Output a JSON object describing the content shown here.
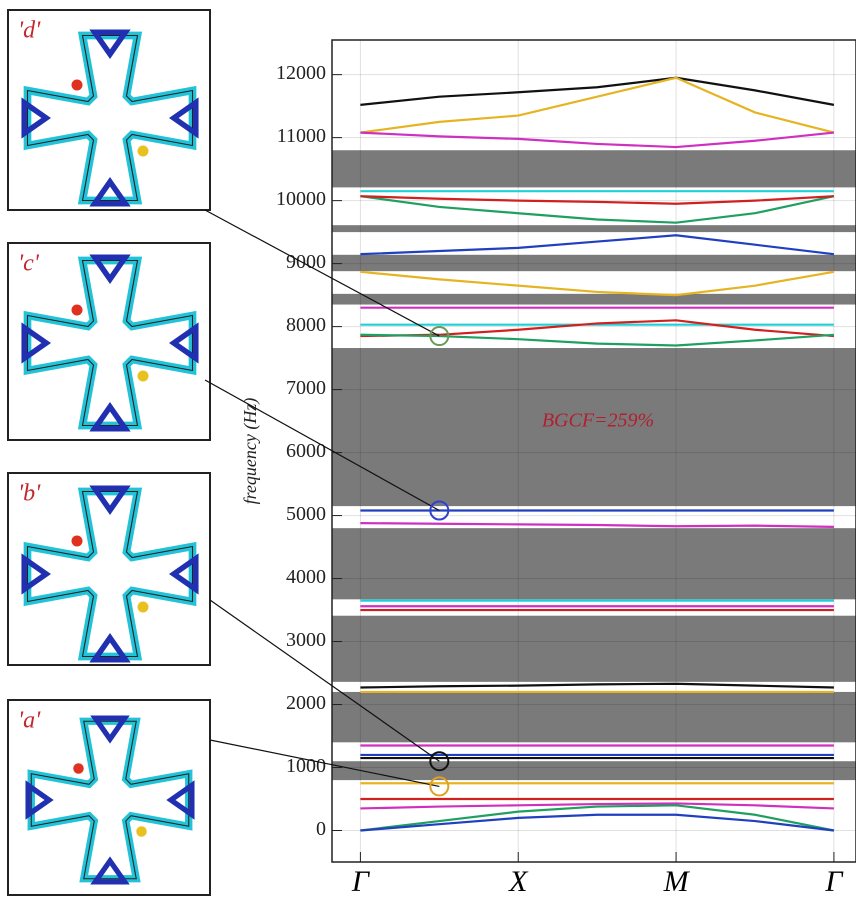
{
  "chart_data": {
    "type": "line",
    "y_label": "frequency (Hz)",
    "annotation": "BGCF=259%",
    "xlim": [
      -0.18,
      3.14
    ],
    "ylim": [
      -500,
      12550
    ],
    "xticks": [
      {
        "value": 0,
        "label": "Γ"
      },
      {
        "value": 1,
        "label": "X"
      },
      {
        "value": 2,
        "label": "M"
      },
      {
        "value": 3,
        "label": "Γ"
      }
    ],
    "yticks": [
      0,
      1000,
      2000,
      3000,
      4000,
      5000,
      6000,
      7000,
      8000,
      9000,
      10000,
      11000,
      12000
    ],
    "grid": true,
    "bandgap_color": "#7a7a7a",
    "bandgaps": [
      [
        800,
        1100
      ],
      [
        1400,
        2200
      ],
      [
        2360,
        3410
      ],
      [
        3670,
        4800
      ],
      [
        5150,
        7660
      ],
      [
        8350,
        8520
      ],
      [
        8880,
        9140
      ],
      [
        9500,
        9610
      ],
      [
        10210,
        10800
      ]
    ],
    "x": [
      0,
      0.5,
      1,
      1.5,
      2,
      2.5,
      3
    ],
    "series": [
      {
        "color": "#111111",
        "values": [
          11520,
          11650,
          11720,
          11800,
          11950,
          11750,
          11520
        ]
      },
      {
        "color": "#e6b422",
        "values": [
          11080,
          11250,
          11350,
          11650,
          11950,
          11400,
          11080
        ]
      },
      {
        "color": "#d030c0",
        "values": [
          11080,
          11020,
          10980,
          10900,
          10850,
          10950,
          11080
        ]
      },
      {
        "color": "#20d0d8",
        "values": [
          10150,
          10150,
          10150,
          10150,
          10150,
          10150,
          10150
        ]
      },
      {
        "color": "#20a060",
        "values": [
          10070,
          9900,
          9800,
          9700,
          9650,
          9800,
          10070
        ]
      },
      {
        "color": "#d02020",
        "values": [
          10070,
          10030,
          10000,
          9980,
          9950,
          10000,
          10070
        ]
      },
      {
        "color": "#2040c0",
        "values": [
          9150,
          9200,
          9250,
          9350,
          9450,
          9300,
          9150
        ]
      },
      {
        "color": "#e6b422",
        "values": [
          8870,
          8750,
          8650,
          8550,
          8500,
          8650,
          8870
        ]
      },
      {
        "color": "#d030c0",
        "values": [
          8300,
          8300,
          8300,
          8300,
          8300,
          8300,
          8300
        ]
      },
      {
        "color": "#20d0d8",
        "values": [
          8030,
          8030,
          8030,
          8030,
          8030,
          8030,
          8030
        ]
      },
      {
        "color": "#d02020",
        "values": [
          7850,
          7870,
          7950,
          8050,
          8100,
          7950,
          7850
        ]
      },
      {
        "color": "#20a060",
        "values": [
          7870,
          7850,
          7800,
          7730,
          7700,
          7780,
          7870
        ]
      },
      {
        "color": "#2040c0",
        "values": [
          5080,
          5080,
          5080,
          5080,
          5080,
          5080,
          5080
        ]
      },
      {
        "color": "#d030c0",
        "values": [
          4880,
          4870,
          4860,
          4850,
          4830,
          4840,
          4820
        ]
      },
      {
        "color": "#20d0d8",
        "values": [
          3650,
          3650,
          3650,
          3650,
          3650,
          3650,
          3650
        ]
      },
      {
        "color": "#d030c0",
        "values": [
          3560,
          3560,
          3560,
          3560,
          3560,
          3560,
          3560
        ]
      },
      {
        "color": "#d02020",
        "values": [
          3500,
          3500,
          3500,
          3500,
          3500,
          3500,
          3500
        ]
      },
      {
        "color": "#111111",
        "values": [
          2270,
          2290,
          2300,
          2320,
          2330,
          2300,
          2270
        ]
      },
      {
        "color": "#e6b422",
        "values": [
          2200,
          2200,
          2200,
          2200,
          2200,
          2200,
          2200
        ]
      },
      {
        "color": "#d030c0",
        "values": [
          1350,
          1350,
          1350,
          1350,
          1350,
          1350,
          1350
        ]
      },
      {
        "color": "#2040c0",
        "values": [
          1200,
          1200,
          1200,
          1200,
          1200,
          1200,
          1200
        ]
      },
      {
        "color": "#111111",
        "values": [
          1150,
          1150,
          1150,
          1150,
          1150,
          1150,
          1150
        ]
      },
      {
        "color": "#e6b422",
        "values": [
          750,
          750,
          750,
          750,
          750,
          750,
          750
        ]
      },
      {
        "color": "#d02020",
        "values": [
          500,
          500,
          500,
          500,
          500,
          500,
          500
        ]
      },
      {
        "color": "#d030c0",
        "values": [
          350,
          380,
          400,
          420,
          430,
          400,
          350
        ]
      },
      {
        "color": "#20a060",
        "values": [
          0,
          150,
          300,
          380,
          400,
          250,
          0
        ]
      },
      {
        "color": "#2040c0",
        "values": [
          0,
          100,
          200,
          250,
          250,
          150,
          0
        ]
      }
    ],
    "modes": [
      {
        "label": "'d'",
        "x": 0.5,
        "y": 7850,
        "color": "#6a9a5a"
      },
      {
        "label": "'c'",
        "x": 0.5,
        "y": 5080,
        "color": "#3040d0"
      },
      {
        "label": "'b'",
        "x": 0.5,
        "y": 1100,
        "color": "#111111"
      },
      {
        "label": "'a'",
        "x": 0.5,
        "y": 700,
        "color": "#e0a020"
      }
    ]
  }
}
